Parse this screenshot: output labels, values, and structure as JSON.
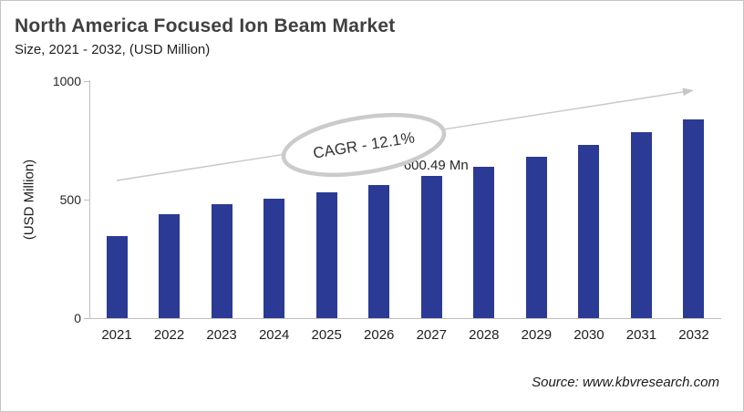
{
  "header": {
    "title": "North America Focused Ion Beam Market",
    "subtitle": "Size, 2021 - 2032, (USD Million)"
  },
  "chart_data": {
    "type": "bar",
    "title": "North America Focused Ion Beam Market",
    "subtitle": "Size, 2021 - 2032, (USD Million)",
    "categories": [
      "2021",
      "2022",
      "2023",
      "2024",
      "2025",
      "2026",
      "2027",
      "2028",
      "2029",
      "2030",
      "2031",
      "2032"
    ],
    "values": [
      345,
      440,
      480,
      505,
      530,
      560,
      600.49,
      640,
      680,
      730,
      785,
      840
    ],
    "xlabel": "",
    "ylabel": "(USD Million)",
    "yticks": [
      0,
      500,
      1000
    ],
    "ylim": [
      0,
      1000
    ],
    "grid": false,
    "legend": "none",
    "bar_color": "#2b3a94",
    "annotations": {
      "cagr_label": "CAGR - 12.1%",
      "data_label": {
        "text": "600.49 Mn",
        "category": "2027"
      },
      "trend_arrow": true
    }
  },
  "footer": {
    "source": "Source: www.kbvresearch.com"
  }
}
